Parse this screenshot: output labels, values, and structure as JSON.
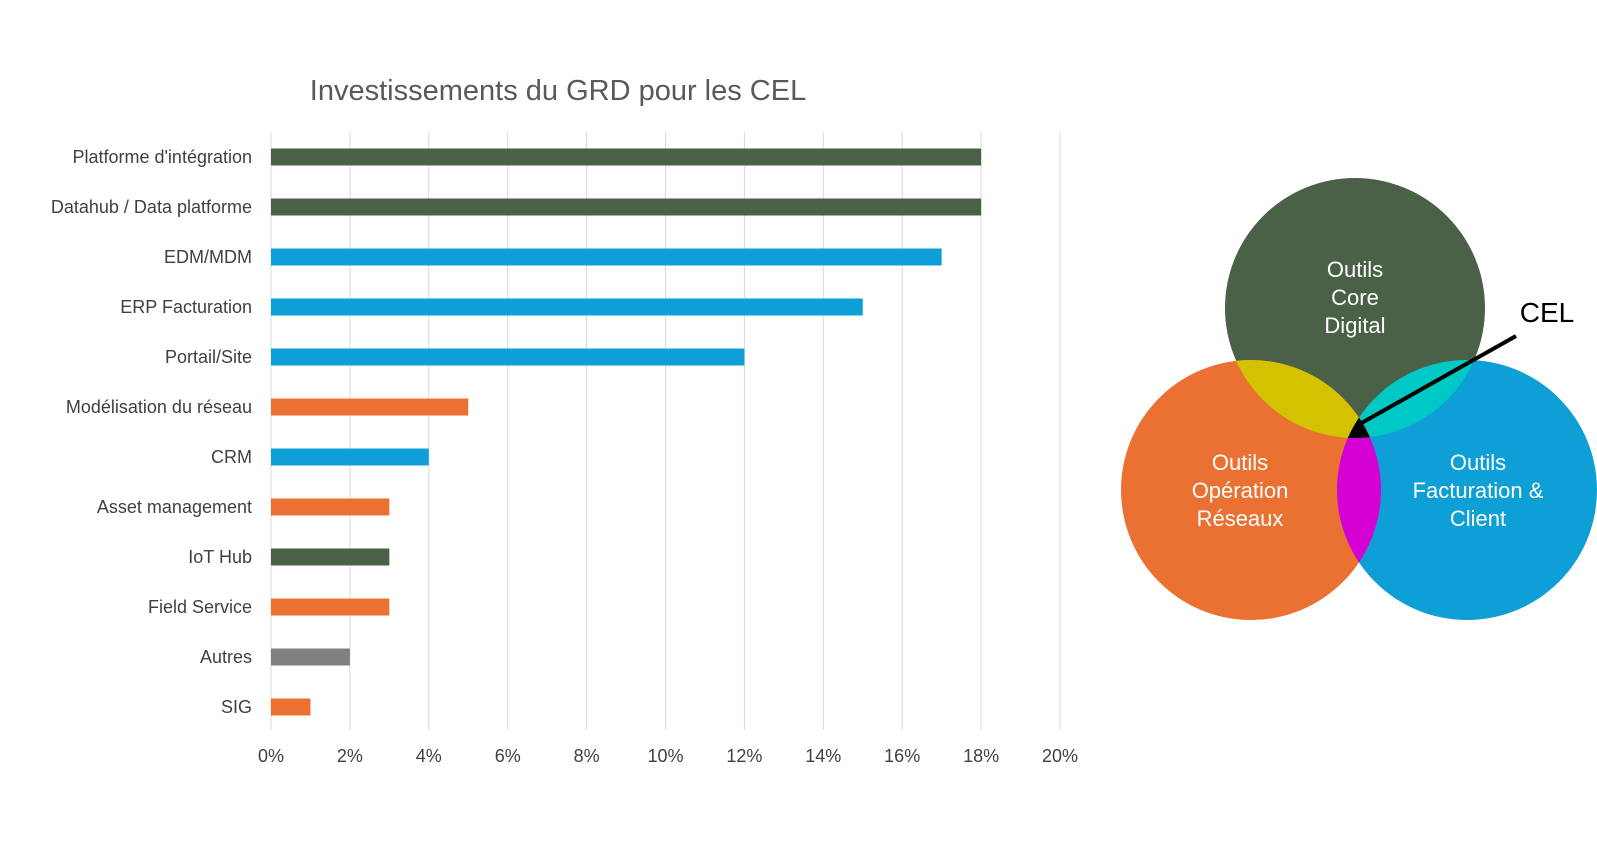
{
  "chart_data": {
    "type": "bar",
    "orientation": "horizontal",
    "title": "Investissements du GRD pour les CEL",
    "categories": [
      "Platforme d'intégration",
      "Datahub / Data platforme",
      "EDM/MDM",
      "ERP Facturation",
      "Portail/Site",
      "Modélisation du réseau",
      "CRM",
      "Asset management",
      "IoT Hub",
      "Field Service",
      "Autres",
      "SIG"
    ],
    "values": [
      18,
      18,
      17,
      15,
      12,
      5,
      4,
      3,
      3,
      3,
      2,
      1
    ],
    "groups": [
      "core",
      "core",
      "billing",
      "billing",
      "billing",
      "operations",
      "billing",
      "operations",
      "core",
      "operations",
      "other",
      "operations"
    ],
    "xlim": [
      0,
      20
    ],
    "xticks": [
      0,
      2,
      4,
      6,
      8,
      10,
      12,
      14,
      16,
      18,
      20
    ],
    "tick_labels": [
      "0%",
      "2%",
      "4%",
      "6%",
      "8%",
      "10%",
      "12%",
      "14%",
      "16%",
      "18%",
      "20%"
    ],
    "grid": true,
    "xlabel": "",
    "ylabel": ""
  },
  "colors": {
    "core": "#4a6047",
    "billing": "#0e9fd6",
    "operations": "#eb7132",
    "other": "#808080",
    "overlap_core_ops": "#d4c200",
    "overlap_core_billing": "#00c9c5",
    "overlap_ops_billing": "#d400d4",
    "center": "#000000",
    "grid": "#d9d9d9"
  },
  "venn": {
    "core": [
      "Outils",
      "Core",
      "Digital"
    ],
    "operations": [
      "Outils",
      "Opération",
      "Réseaux"
    ],
    "billing": [
      "Outils",
      "Facturation &",
      "Client"
    ],
    "pointer_label": "CEL"
  }
}
